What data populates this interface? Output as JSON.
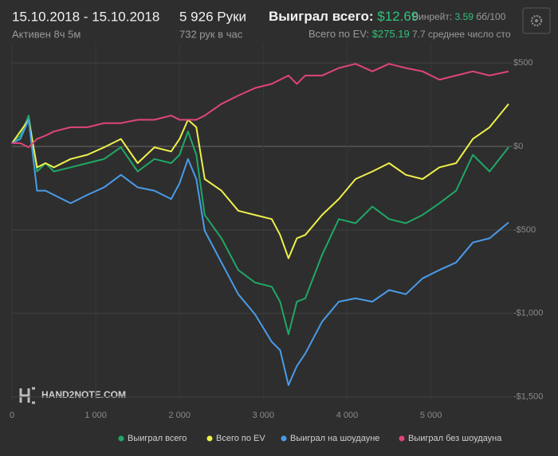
{
  "header": {
    "dates": "15.10.2018 - 15.10.2018",
    "active": "Активен 8ч 5м",
    "hands": "5 926 Руки",
    "rate": "732 рук в час",
    "won_label": "Выиграл всего:",
    "won_value": "$12.69",
    "ev_label": "Всего по EV:",
    "ev_value": "$275.19",
    "winrate_label": "Винрейт:",
    "winrate_value": "3.59",
    "winrate_unit": "бб/100",
    "avg_players": "7.7 среднее число сто"
  },
  "chart_data": {
    "type": "line",
    "watermark": "HAND2NOTE.COM",
    "x": [
      0,
      100,
      200,
      300,
      400,
      500,
      700,
      900,
      1100,
      1300,
      1500,
      1700,
      1900,
      2000,
      2100,
      2200,
      2300,
      2500,
      2700,
      2900,
      3100,
      3200,
      3300,
      3400,
      3500,
      3700,
      3900,
      4100,
      4300,
      4500,
      4700,
      4900,
      5100,
      5300,
      5500,
      5700,
      5926
    ],
    "series": [
      {
        "name": "Выиграл всего",
        "color": "#1fa866",
        "values": [
          20,
          65,
          185,
          -150,
          -100,
          -150,
          -125,
          -100,
          -75,
          -5,
          -150,
          -75,
          -100,
          -50,
          90,
          -50,
          -410,
          -550,
          -740,
          -815,
          -840,
          -930,
          -1125,
          -930,
          -910,
          -650,
          -435,
          -460,
          -360,
          -435,
          -460,
          -410,
          -340,
          -265,
          -50,
          -150,
          -5
        ]
      },
      {
        "name": "Всего по EV",
        "color": "#eef04a",
        "values": [
          20,
          90,
          160,
          -125,
          -100,
          -125,
          -75,
          -50,
          -5,
          45,
          -100,
          -5,
          -30,
          45,
          160,
          115,
          -195,
          -265,
          -385,
          -410,
          -435,
          -530,
          -670,
          -550,
          -530,
          -410,
          -315,
          -195,
          -150,
          -100,
          -170,
          -195,
          -125,
          -100,
          45,
          115,
          255
        ]
      },
      {
        "name": "Выиграл на шоудауне",
        "color": "#4a9be8",
        "values": [
          20,
          45,
          160,
          -265,
          -265,
          -290,
          -340,
          -290,
          -245,
          -170,
          -245,
          -265,
          -315,
          -220,
          -75,
          -195,
          -505,
          -695,
          -885,
          -1005,
          -1170,
          -1220,
          -1430,
          -1315,
          -1240,
          -1050,
          -930,
          -910,
          -930,
          -860,
          -885,
          -790,
          -740,
          -695,
          -575,
          -550,
          -455
        ]
      },
      {
        "name": "Выиграл без шоудауна",
        "color": "#e0457b",
        "values": [
          20,
          20,
          -5,
          45,
          65,
          90,
          115,
          115,
          140,
          140,
          160,
          160,
          185,
          160,
          160,
          160,
          185,
          255,
          305,
          350,
          375,
          400,
          425,
          375,
          425,
          425,
          470,
          495,
          450,
          495,
          470,
          450,
          400,
          425,
          450,
          425,
          450
        ]
      }
    ],
    "xlim": [
      0,
      5926
    ],
    "xticks": [
      0,
      {
        "value": 1000,
        "label": "1 000"
      },
      {
        "value": 2000,
        "label": "2 000"
      },
      {
        "value": 3000,
        "label": "3 000"
      },
      {
        "value": 4000,
        "label": "4 000"
      },
      {
        "value": 5000,
        "label": "5 000"
      }
    ],
    "ylim": [
      -1530,
      620
    ],
    "yticks": [
      {
        "value": 500,
        "label": "$500"
      },
      {
        "value": 0,
        "label": "$0"
      },
      {
        "value": -500,
        "label": "-$500"
      },
      {
        "value": -1000,
        "label": "-$1,000"
      },
      {
        "value": -1500,
        "label": "-$1,500"
      }
    ],
    "grid": true
  }
}
